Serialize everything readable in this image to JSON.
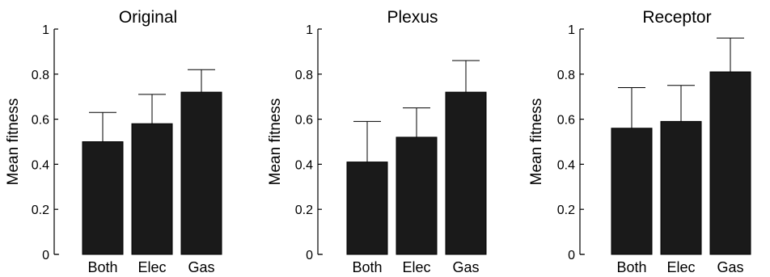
{
  "chart_data": [
    {
      "type": "bar",
      "title": "Original",
      "ylabel": "Mean fitness",
      "xlabel": "",
      "categories": [
        "Both",
        "Elec",
        "Gas"
      ],
      "values": [
        0.5,
        0.58,
        0.72
      ],
      "error_upper": [
        0.63,
        0.71,
        0.82
      ],
      "ylim": [
        0,
        1
      ],
      "yticks": [
        "0",
        "0.2",
        "0.4",
        "0.6",
        "0.8",
        "1"
      ],
      "ytick_values": [
        0,
        0.2,
        0.4,
        0.6,
        0.8,
        1
      ],
      "bar_color": "#1a1a1a"
    },
    {
      "type": "bar",
      "title": "Plexus",
      "ylabel": "Mean fitness",
      "xlabel": "",
      "categories": [
        "Both",
        "Elec",
        "Gas"
      ],
      "values": [
        0.41,
        0.52,
        0.72
      ],
      "error_upper": [
        0.59,
        0.65,
        0.86
      ],
      "ylim": [
        0,
        1
      ],
      "yticks": [
        "0",
        "0.2",
        "0.4",
        "0.6",
        "0.8",
        "1"
      ],
      "ytick_values": [
        0,
        0.2,
        0.4,
        0.6,
        0.8,
        1
      ],
      "bar_color": "#1a1a1a"
    },
    {
      "type": "bar",
      "title": "Receptor",
      "ylabel": "Mean fitness",
      "xlabel": "",
      "categories": [
        "Both",
        "Elec",
        "Gas"
      ],
      "values": [
        0.56,
        0.59,
        0.81
      ],
      "error_upper": [
        0.74,
        0.75,
        0.96
      ],
      "ylim": [
        0,
        1
      ],
      "yticks": [
        "0",
        "0.2",
        "0.4",
        "0.6",
        "0.8",
        "1"
      ],
      "ytick_values": [
        0,
        0.2,
        0.4,
        0.6,
        0.8,
        1
      ],
      "bar_color": "#1a1a1a"
    }
  ]
}
